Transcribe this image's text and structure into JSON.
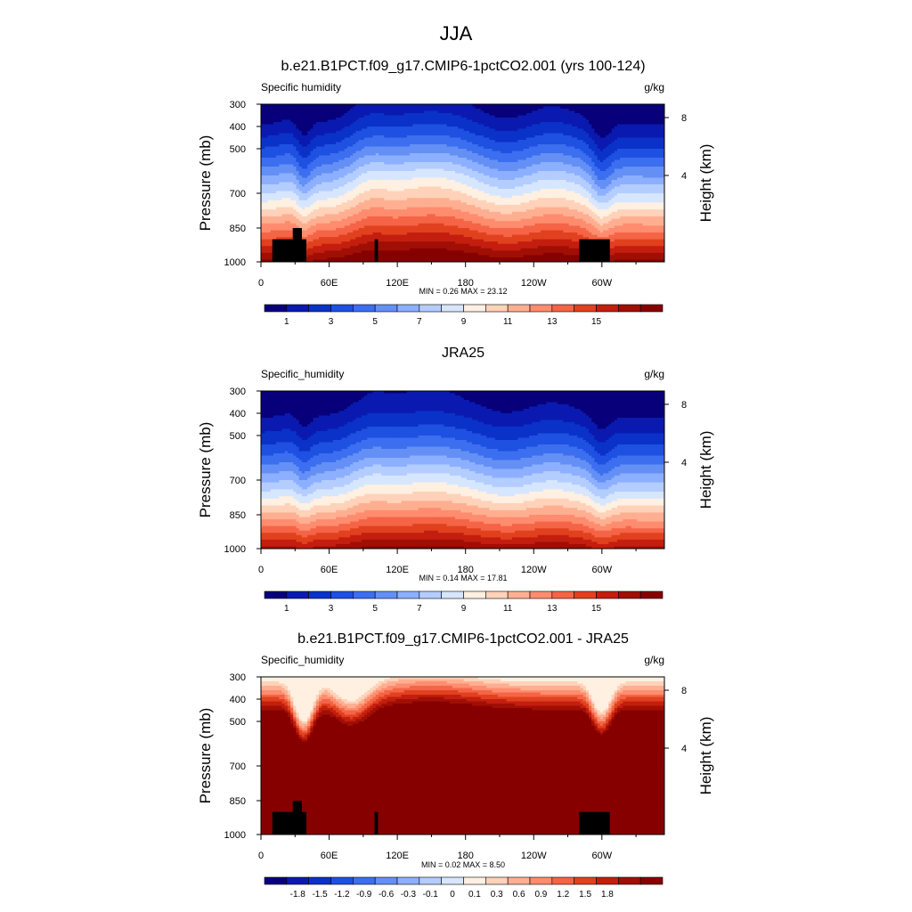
{
  "figure": {
    "title": "JJA"
  },
  "colors": {
    "seq": [
      "#08007a",
      "#0a1ab0",
      "#0a32c8",
      "#1e50e1",
      "#3c6ef0",
      "#6490f5",
      "#8cafff",
      "#b4cdff",
      "#d7e6ff",
      "#fff0e1",
      "#ffd2b9",
      "#ffaf91",
      "#ff8c6e",
      "#f56446",
      "#e1411e",
      "#c31e0f",
      "#a00f05",
      "#870000"
    ],
    "diff": [
      "#08007a",
      "#0a1ab0",
      "#0a32c8",
      "#1e50e1",
      "#3c6ef0",
      "#6490f5",
      "#8cafff",
      "#b4cdff",
      "#d7e6ff",
      "#fff0e1",
      "#ffd2b9",
      "#ffaf91",
      "#ff8c6e",
      "#f56446",
      "#e1411e",
      "#c31e0f",
      "#a00f05",
      "#870000"
    ],
    "missing": "#000000"
  },
  "chart_data": [
    {
      "type": "heatmap",
      "title": "b.e21.B1PCT.f09_g17.CMIP6-1pctCO2.001 (yrs 100-124)",
      "left_label": "Specific humidity",
      "units": "g/kg",
      "ylabel": "Pressure (mb)",
      "y2label": "Height (km)",
      "y_ticks": [
        300,
        400,
        500,
        700,
        850,
        1000
      ],
      "y2_ticks": [
        8,
        4
      ],
      "x_ticks": [
        "0",
        "60E",
        "120E",
        "180",
        "120W",
        "60W"
      ],
      "xlim": [
        0,
        355
      ],
      "ylim": [
        1000,
        300
      ],
      "min_text": "MIN =   0.26  MAX =  23.12",
      "colorbar_labels": [
        "1",
        "3",
        "5",
        "7",
        "9",
        "11",
        "13",
        "15"
      ],
      "colorbar_levels": 18,
      "scale": "seq",
      "values_desc_min": 0.26,
      "values_desc_max": 23.12
    },
    {
      "type": "heatmap",
      "title": "JRA25",
      "left_label": "Specific_humidity",
      "units": "g/kg",
      "ylabel": "Pressure (mb)",
      "y2label": "Height (km)",
      "y_ticks": [
        300,
        400,
        500,
        700,
        850,
        1000
      ],
      "y2_ticks": [
        8,
        4
      ],
      "x_ticks": [
        "0",
        "60E",
        "120E",
        "180",
        "120W",
        "60W"
      ],
      "xlim": [
        0,
        355
      ],
      "ylim": [
        1000,
        300
      ],
      "min_text": "MIN =   0.14  MAX =  17.81",
      "colorbar_labels": [
        "1",
        "3",
        "5",
        "7",
        "9",
        "11",
        "13",
        "15"
      ],
      "colorbar_levels": 18,
      "scale": "seq",
      "values_desc_min": 0.14,
      "values_desc_max": 17.81
    },
    {
      "type": "heatmap",
      "title": "b.e21.B1PCT.f09_g17.CMIP6-1pctCO2.001 - JRA25",
      "left_label": "Specific_humidity",
      "units": "g/kg",
      "ylabel": "Pressure (mb)",
      "y2label": "Height (km)",
      "y_ticks": [
        300,
        400,
        500,
        700,
        850,
        1000
      ],
      "y2_ticks": [
        8,
        4
      ],
      "x_ticks": [
        "0",
        "60E",
        "120E",
        "180",
        "120W",
        "60W"
      ],
      "xlim": [
        0,
        355
      ],
      "ylim": [
        1000,
        300
      ],
      "min_text": "MIN =   0.02  MAX =   8.50",
      "colorbar_labels": [
        "-1.8",
        "-1.5",
        "-1.2",
        "-0.9",
        "-0.6",
        "-0.3",
        "-0.1",
        "0",
        "0.1",
        "0.3",
        "0.6",
        "0.9",
        "1.2",
        "1.5",
        "1.8"
      ],
      "colorbar_levels": 18,
      "scale": "diff",
      "values_desc_min": 0.02,
      "values_desc_max": 8.5
    }
  ]
}
